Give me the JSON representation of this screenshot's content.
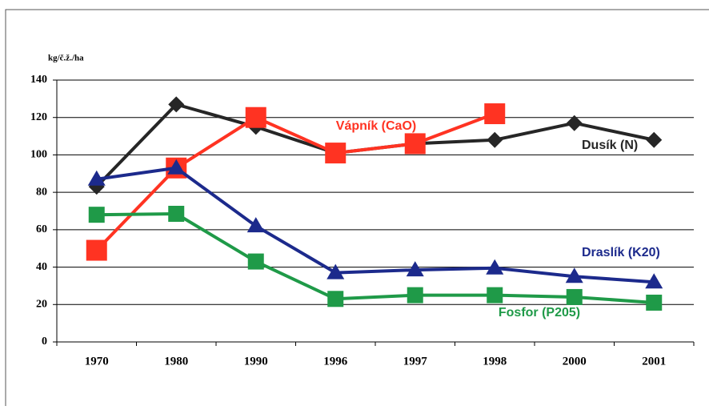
{
  "chart_data": {
    "type": "line",
    "y_label": "kg/č.ž./ha",
    "categories": [
      "1970",
      "1980",
      "1990",
      "1996",
      "1997",
      "1998",
      "2000",
      "2001"
    ],
    "series": [
      {
        "name": "Dusík (N)",
        "color": "#262626",
        "marker": "diamond",
        "values": [
          83,
          127,
          115,
          101,
          106,
          108,
          117,
          108
        ]
      },
      {
        "name": "Vápník (CaO)",
        "color": "#ff3322",
        "marker": "square",
        "values": [
          49,
          93,
          120,
          101,
          106,
          122,
          null,
          null
        ]
      },
      {
        "name": "Draslík (K20)",
        "color": "#1c2a8c",
        "marker": "triangle",
        "values": [
          87,
          93,
          62,
          37,
          38.5,
          39.5,
          35,
          32
        ]
      },
      {
        "name": "Fosfor (P205)",
        "color": "#1f9a48",
        "marker": "square",
        "values": [
          68,
          68.5,
          43,
          23,
          25,
          25,
          24,
          21
        ]
      }
    ],
    "ylim": [
      0,
      140
    ],
    "yticks": [
      0,
      20,
      40,
      60,
      80,
      100,
      120,
      140
    ],
    "grid": true
  }
}
